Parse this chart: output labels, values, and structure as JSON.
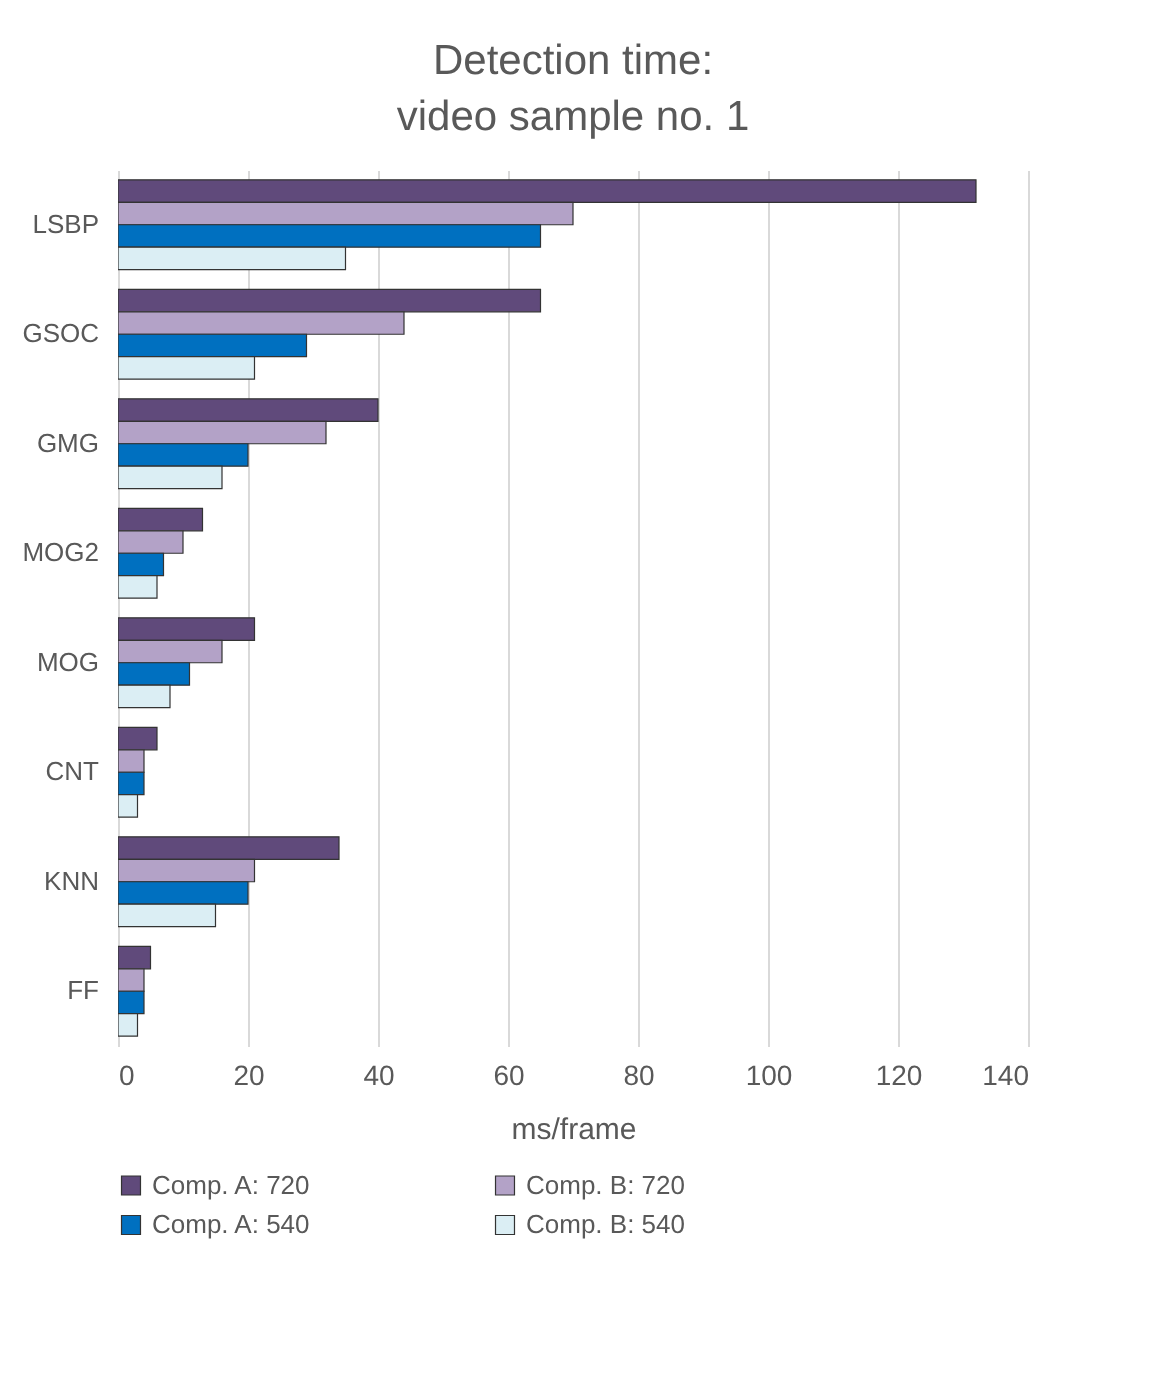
{
  "chart_data": {
    "type": "bar",
    "orientation": "horizontal",
    "title": "Detection time:\nvideo sample no. 1",
    "xlabel": "ms/frame",
    "categories": [
      "LSBP",
      "GSOC",
      "GMG",
      "MOG2",
      "MOG",
      "CNT",
      "KNN",
      "FF"
    ],
    "series": [
      {
        "name": "Comp. A: 720",
        "color": "#604a7b",
        "values": [
          132,
          65,
          40,
          13,
          21,
          6,
          34,
          5
        ]
      },
      {
        "name": "Comp. B: 720",
        "color": "#b3a2c7",
        "values": [
          70,
          44,
          32,
          10,
          16,
          4,
          21,
          4
        ]
      },
      {
        "name": "Comp. A: 540",
        "color": "#0070c0",
        "values": [
          65,
          29,
          20,
          7,
          11,
          4,
          20,
          4
        ]
      },
      {
        "name": "Comp. B: 540",
        "color": "#dbeef4",
        "values": [
          35,
          21,
          16,
          6,
          8,
          3,
          15,
          3
        ]
      }
    ],
    "xlim": [
      0,
      140
    ],
    "xticks": [
      0,
      20,
      40,
      60,
      80,
      100,
      120,
      140
    ],
    "grid": "x",
    "legend": "bottom"
  }
}
